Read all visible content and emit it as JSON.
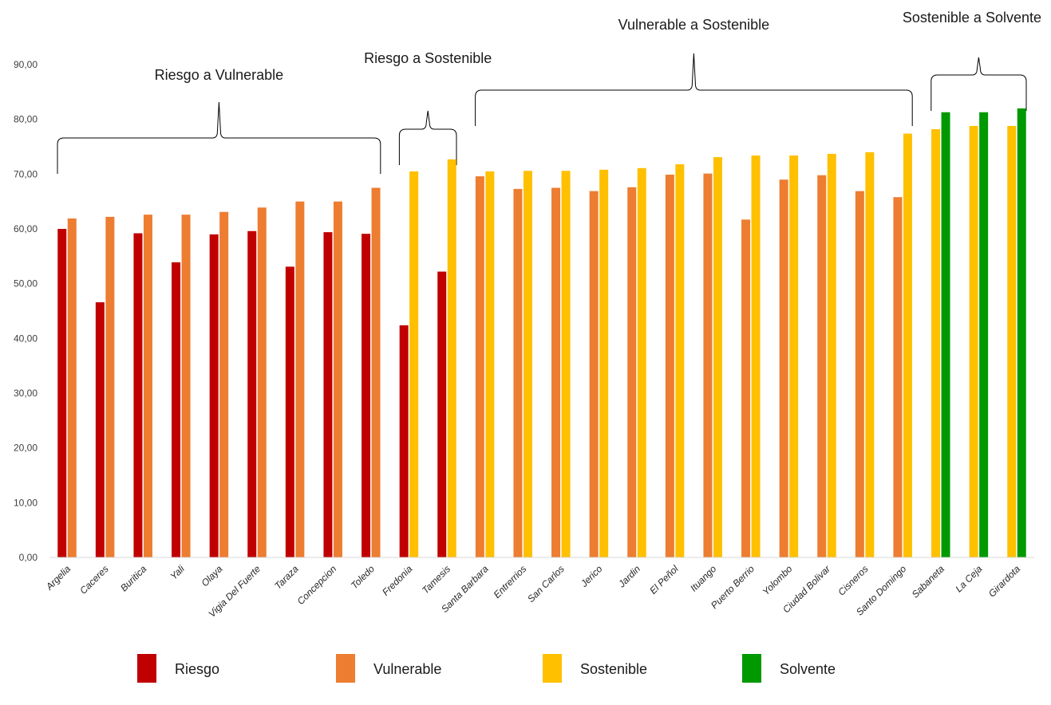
{
  "chart_data": {
    "type": "bar",
    "title": "",
    "xlabel": "",
    "ylabel": "",
    "ylim": [
      0,
      90
    ],
    "yticks": [
      "0,00",
      "10,00",
      "20,00",
      "30,00",
      "40,00",
      "50,00",
      "60,00",
      "70,00",
      "80,00",
      "90,00"
    ],
    "grid": false,
    "legend_position": "bottom",
    "categories": [
      "Argelia",
      "Caceres",
      "Buritica",
      "Yali",
      "Olaya",
      "Vigia Del Fuerte",
      "Taraza",
      "Concepcion",
      "Toledo",
      "Fredonia",
      "Tamesis",
      "Santa Barbara",
      "Entrerrios",
      "San Carlos",
      "Jerico",
      "Jardin",
      "El Peñol",
      "Ituango",
      "Puerto Berrio",
      "Yolombo",
      "Ciudad Bolivar",
      "Cisneros",
      "Santo Domingo",
      "Sabaneta",
      "La Ceja",
      "Girardota"
    ],
    "levels": [
      {
        "name": "Riesgo",
        "color": "#C00000"
      },
      {
        "name": "Vulnerable",
        "color": "#ED7D31"
      },
      {
        "name": "Sostenible",
        "color": "#FFC000"
      },
      {
        "name": "Solvente",
        "color": "#009900"
      }
    ],
    "pairs": [
      {
        "category": "Argelia",
        "first": {
          "value": 60.0,
          "level": "Riesgo"
        },
        "second": {
          "value": 61.9,
          "level": "Vulnerable"
        }
      },
      {
        "category": "Caceres",
        "first": {
          "value": 46.6,
          "level": "Riesgo"
        },
        "second": {
          "value": 62.2,
          "level": "Vulnerable"
        }
      },
      {
        "category": "Buritica",
        "first": {
          "value": 59.2,
          "level": "Riesgo"
        },
        "second": {
          "value": 62.6,
          "level": "Vulnerable"
        }
      },
      {
        "category": "Yali",
        "first": {
          "value": 53.9,
          "level": "Riesgo"
        },
        "second": {
          "value": 62.6,
          "level": "Vulnerable"
        }
      },
      {
        "category": "Olaya",
        "first": {
          "value": 59.0,
          "level": "Riesgo"
        },
        "second": {
          "value": 63.1,
          "level": "Vulnerable"
        }
      },
      {
        "category": "Vigia Del Fuerte",
        "first": {
          "value": 59.6,
          "level": "Riesgo"
        },
        "second": {
          "value": 63.9,
          "level": "Vulnerable"
        }
      },
      {
        "category": "Taraza",
        "first": {
          "value": 53.1,
          "level": "Riesgo"
        },
        "second": {
          "value": 65.0,
          "level": "Vulnerable"
        }
      },
      {
        "category": "Concepcion",
        "first": {
          "value": 59.4,
          "level": "Riesgo"
        },
        "second": {
          "value": 65.0,
          "level": "Vulnerable"
        }
      },
      {
        "category": "Toledo",
        "first": {
          "value": 59.1,
          "level": "Riesgo"
        },
        "second": {
          "value": 67.5,
          "level": "Vulnerable"
        }
      },
      {
        "category": "Fredonia",
        "first": {
          "value": 42.4,
          "level": "Riesgo"
        },
        "second": {
          "value": 70.5,
          "level": "Sostenible"
        }
      },
      {
        "category": "Tamesis",
        "first": {
          "value": 52.2,
          "level": "Riesgo"
        },
        "second": {
          "value": 72.7,
          "level": "Sostenible"
        }
      },
      {
        "category": "Santa Barbara",
        "first": {
          "value": 69.6,
          "level": "Vulnerable"
        },
        "second": {
          "value": 70.5,
          "level": "Sostenible"
        }
      },
      {
        "category": "Entrerrios",
        "first": {
          "value": 67.3,
          "level": "Vulnerable"
        },
        "second": {
          "value": 70.6,
          "level": "Sostenible"
        }
      },
      {
        "category": "San Carlos",
        "first": {
          "value": 67.5,
          "level": "Vulnerable"
        },
        "second": {
          "value": 70.6,
          "level": "Sostenible"
        }
      },
      {
        "category": "Jerico",
        "first": {
          "value": 66.9,
          "level": "Vulnerable"
        },
        "second": {
          "value": 70.8,
          "level": "Sostenible"
        }
      },
      {
        "category": "Jardin",
        "first": {
          "value": 67.6,
          "level": "Vulnerable"
        },
        "second": {
          "value": 71.1,
          "level": "Sostenible"
        }
      },
      {
        "category": "El Peñol",
        "first": {
          "value": 69.9,
          "level": "Vulnerable"
        },
        "second": {
          "value": 71.8,
          "level": "Sostenible"
        }
      },
      {
        "category": "Ituango",
        "first": {
          "value": 70.1,
          "level": "Vulnerable"
        },
        "second": {
          "value": 73.1,
          "level": "Sostenible"
        }
      },
      {
        "category": "Puerto Berrio",
        "first": {
          "value": 61.7,
          "level": "Vulnerable"
        },
        "second": {
          "value": 73.4,
          "level": "Sostenible"
        }
      },
      {
        "category": "Yolombo",
        "first": {
          "value": 69.0,
          "level": "Vulnerable"
        },
        "second": {
          "value": 73.4,
          "level": "Sostenible"
        }
      },
      {
        "category": "Ciudad Bolivar",
        "first": {
          "value": 69.8,
          "level": "Vulnerable"
        },
        "second": {
          "value": 73.7,
          "level": "Sostenible"
        }
      },
      {
        "category": "Cisneros",
        "first": {
          "value": 66.9,
          "level": "Vulnerable"
        },
        "second": {
          "value": 74.0,
          "level": "Sostenible"
        }
      },
      {
        "category": "Santo Domingo",
        "first": {
          "value": 65.8,
          "level": "Vulnerable"
        },
        "second": {
          "value": 77.4,
          "level": "Sostenible"
        }
      },
      {
        "category": "Sabaneta",
        "first": {
          "value": 78.2,
          "level": "Sostenible"
        },
        "second": {
          "value": 81.3,
          "level": "Solvente"
        }
      },
      {
        "category": "La Ceja",
        "first": {
          "value": 78.8,
          "level": "Sostenible"
        },
        "second": {
          "value": 81.3,
          "level": "Solvente"
        }
      },
      {
        "category": "Girardota",
        "first": {
          "value": 78.8,
          "level": "Sostenible"
        },
        "second": {
          "value": 82.0,
          "level": "Solvente"
        }
      }
    ],
    "annotations": [
      {
        "text": "Riesgo a Vulnerable",
        "from_category": "Argelia",
        "to_category": "Toledo"
      },
      {
        "text": "Riesgo a Sostenible",
        "from_category": "Fredonia",
        "to_category": "Tamesis"
      },
      {
        "text": "Vulnerable a Sostenible",
        "from_category": "Santa Barbara",
        "to_category": "Santo Domingo"
      },
      {
        "text": "Sostenible a Solvente",
        "from_category": "Sabaneta",
        "to_category": "Girardota"
      }
    ]
  }
}
